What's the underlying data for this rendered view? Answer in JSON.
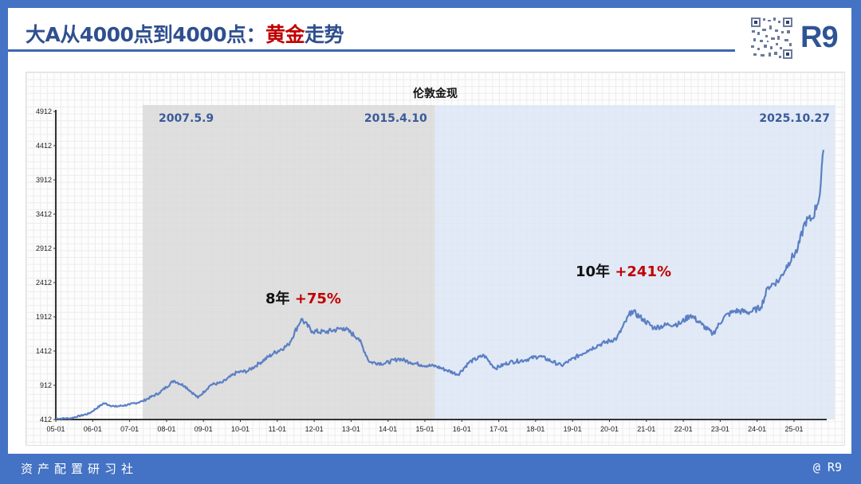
{
  "header": {
    "title_part1": "大A从4000点到4000点：",
    "title_highlight": "黄金",
    "title_part2": "走势",
    "brand": "R9",
    "qr_code": "qr-code-icon"
  },
  "footer": {
    "left": "资产配置研习社",
    "right": "@ R9"
  },
  "colors": {
    "frame_blue": "#4472c4",
    "title_blue": "#2f4f8f",
    "highlight_red": "#c00000",
    "line_blue": "#5b7fc4",
    "period1_shade": "#d9d9d9",
    "period2_shade": "#dce6f4",
    "date_label": "#3a5a9a"
  },
  "chart_data": {
    "type": "line",
    "title": "伦敦金现",
    "xlabel": "",
    "ylabel": "",
    "ylim": [
      412,
      4912
    ],
    "yticks": [
      412,
      912,
      1412,
      1912,
      2412,
      2912,
      3412,
      3912,
      4412,
      4912
    ],
    "xticks": [
      "05-01",
      "06-01",
      "07-01",
      "08-01",
      "09-01",
      "10-01",
      "11-01",
      "12-01",
      "13-01",
      "14-01",
      "15-01",
      "16-01",
      "17-01",
      "18-01",
      "19-01",
      "20-01",
      "21-01",
      "22-01",
      "23-01",
      "24-01",
      "25-01"
    ],
    "grid": true,
    "legend": "none",
    "shaded_regions": [
      {
        "start": "2007.5.9",
        "end": "2015.4.10",
        "color": "#d9d9d9",
        "annotation": "8年",
        "change": "+75%"
      },
      {
        "start": "2015.4.10",
        "end": "2025.10.27",
        "color": "#dce6f4",
        "annotation": "10年",
        "change": "+241%"
      }
    ],
    "date_labels": [
      "2007.5.9",
      "2015.4.10",
      "2025.10.27"
    ],
    "series": [
      {
        "name": "伦敦金现",
        "x": [
          2005.0,
          2005.4,
          2005.9,
          2006.3,
          2006.6,
          2007.0,
          2007.35,
          2007.8,
          2008.2,
          2008.5,
          2008.85,
          2009.2,
          2009.5,
          2009.9,
          2010.2,
          2010.5,
          2010.9,
          2011.3,
          2011.65,
          2011.95,
          2012.3,
          2012.8,
          2013.2,
          2013.5,
          2013.9,
          2014.3,
          2014.6,
          2014.9,
          2015.3,
          2015.6,
          2015.9,
          2016.2,
          2016.6,
          2016.9,
          2017.3,
          2017.7,
          2018.1,
          2018.7,
          2018.95,
          2019.4,
          2019.7,
          2020.2,
          2020.6,
          2020.9,
          2021.2,
          2021.6,
          2021.9,
          2022.2,
          2022.5,
          2022.8,
          2023.1,
          2023.4,
          2023.8,
          2024.1,
          2024.3,
          2024.6,
          2024.85,
          2025.1,
          2025.3,
          2025.5,
          2025.7,
          2025.8
        ],
        "values": [
          425,
          430,
          500,
          650,
          600,
          630,
          680,
          800,
          980,
          900,
          730,
          920,
          950,
          1100,
          1120,
          1230,
          1380,
          1500,
          1880,
          1700,
          1690,
          1750,
          1600,
          1250,
          1230,
          1300,
          1250,
          1210,
          1190,
          1130,
          1070,
          1250,
          1350,
          1160,
          1250,
          1280,
          1340,
          1200,
          1280,
          1420,
          1500,
          1600,
          2000,
          1880,
          1750,
          1800,
          1810,
          1940,
          1800,
          1660,
          1910,
          2000,
          1980,
          2050,
          2350,
          2450,
          2700,
          2900,
          3300,
          3350,
          3700,
          4350
        ]
      }
    ]
  }
}
